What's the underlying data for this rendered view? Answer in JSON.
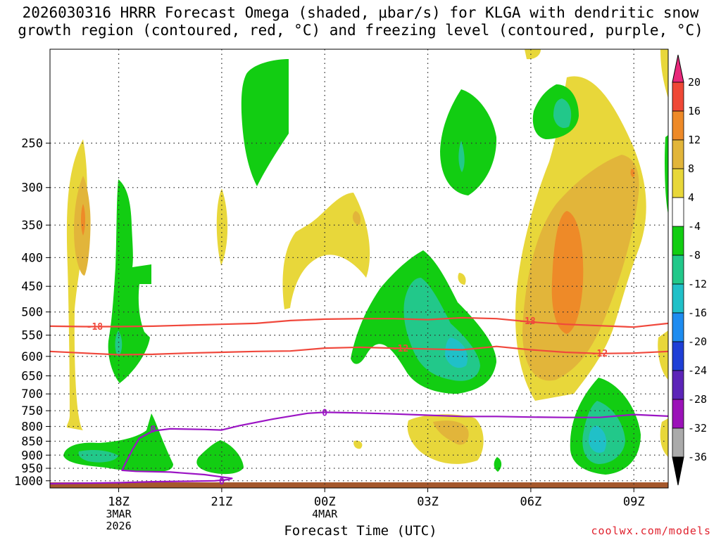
{
  "chart_data": {
    "type": "heatmap",
    "title_line1": "2026030316 HRRR Forecast Omega (shaded, μbar/s) for KLGA with dendritic snow",
    "title_line2": "growth region (contoured, red, °C) and freezing level (contoured, purple, °C)",
    "xlabel": "Forecast Time (UTC)",
    "ylabel": "",
    "credit": "coolwx.com/models",
    "x_domain_hours": [
      16,
      34
    ],
    "y_domain_hpa": [
      1030,
      170
    ],
    "x_ticks": [
      {
        "hour": 18,
        "label": "18Z",
        "sub1": "3MAR",
        "sub2": "2026"
      },
      {
        "hour": 21,
        "label": "21Z",
        "sub1": "",
        "sub2": ""
      },
      {
        "hour": 24,
        "label": "00Z",
        "sub1": "4MAR",
        "sub2": ""
      },
      {
        "hour": 27,
        "label": "03Z",
        "sub1": "",
        "sub2": ""
      },
      {
        "hour": 30,
        "label": "06Z",
        "sub1": "",
        "sub2": ""
      },
      {
        "hour": 33,
        "label": "09Z",
        "sub1": "",
        "sub2": ""
      }
    ],
    "y_ticks": [
      250,
      300,
      350,
      400,
      450,
      500,
      550,
      600,
      650,
      700,
      750,
      800,
      850,
      900,
      950,
      1000
    ],
    "colorbar": {
      "labels": [
        "20",
        "16",
        "12",
        "8",
        "4",
        "-4",
        "-8",
        "-12",
        "-16",
        "-20",
        "-24",
        "-28",
        "-32",
        "-36"
      ],
      "colors": [
        "#e8287a",
        "#ef4836",
        "#ee8a28",
        "#e2b53a",
        "#e8d73a",
        "#ffffff",
        "#12cd12",
        "#22c88a",
        "#20c0c8",
        "#1e8cf0",
        "#1f3fd6",
        "#5c24b8",
        "#9b12b8",
        "#aaaaaa",
        "#000000"
      ]
    },
    "contours": [
      {
        "name": "dgz-minus18",
        "label": "-18",
        "color": "#f0483c",
        "points": [
          [
            16,
            530
          ],
          [
            17,
            531
          ],
          [
            18,
            531
          ],
          [
            19,
            530
          ],
          [
            20,
            528
          ],
          [
            21,
            526
          ],
          [
            22,
            524
          ],
          [
            23,
            518
          ],
          [
            24,
            515
          ],
          [
            25,
            514
          ],
          [
            26,
            514
          ],
          [
            27,
            516
          ],
          [
            28,
            512
          ],
          [
            29,
            514
          ],
          [
            30,
            521
          ],
          [
            31,
            526
          ],
          [
            32,
            529
          ],
          [
            33,
            532
          ],
          [
            34,
            524
          ]
        ],
        "label_positions": [
          [
            17.3,
            530
          ],
          [
            29.9,
            518
          ]
        ]
      },
      {
        "name": "dgz-minus12",
        "label": "-12",
        "color": "#f0483c",
        "points": [
          [
            16,
            588
          ],
          [
            17,
            592
          ],
          [
            18,
            596
          ],
          [
            19,
            595
          ],
          [
            20,
            592
          ],
          [
            21,
            590
          ],
          [
            22,
            588
          ],
          [
            23,
            587
          ],
          [
            24,
            580
          ],
          [
            25,
            578
          ],
          [
            26,
            580
          ],
          [
            27,
            582
          ],
          [
            28,
            584
          ],
          [
            29,
            576
          ],
          [
            30,
            584
          ],
          [
            31,
            590
          ],
          [
            32,
            593
          ],
          [
            33,
            592
          ],
          [
            34,
            588
          ]
        ],
        "label_positions": [
          [
            26.2,
            580
          ],
          [
            32.0,
            592
          ]
        ]
      },
      {
        "name": "freezing-level",
        "label": "0",
        "color": "#9b14c4",
        "points": [
          [
            16,
            1012
          ],
          [
            17,
            1010
          ],
          [
            18,
            1008
          ],
          [
            19,
            1004
          ],
          [
            20,
            1002
          ],
          [
            20.8,
            1000
          ],
          [
            21.2,
            995
          ],
          [
            21.3,
            990
          ],
          [
            20.5,
            975
          ],
          [
            19.5,
            965
          ],
          [
            18.5,
            962
          ],
          [
            18.1,
            958
          ],
          [
            18.2,
            930
          ],
          [
            18.4,
            880
          ],
          [
            18.6,
            840
          ],
          [
            19.0,
            815
          ],
          [
            19.5,
            808
          ],
          [
            20.5,
            810
          ],
          [
            21.0,
            812
          ],
          [
            21.5,
            798
          ],
          [
            22.5,
            776
          ],
          [
            23.5,
            758
          ],
          [
            24,
            755
          ],
          [
            25,
            757
          ],
          [
            26,
            760
          ],
          [
            27,
            764
          ],
          [
            28,
            768
          ],
          [
            29,
            768
          ],
          [
            30,
            770
          ],
          [
            31,
            771
          ],
          [
            32,
            771
          ],
          [
            33,
            762
          ],
          [
            34,
            767
          ]
        ],
        "label_positions": [
          [
            19.0,
            808
          ],
          [
            21.0,
            1000
          ],
          [
            24.0,
            755
          ]
        ]
      }
    ]
  }
}
